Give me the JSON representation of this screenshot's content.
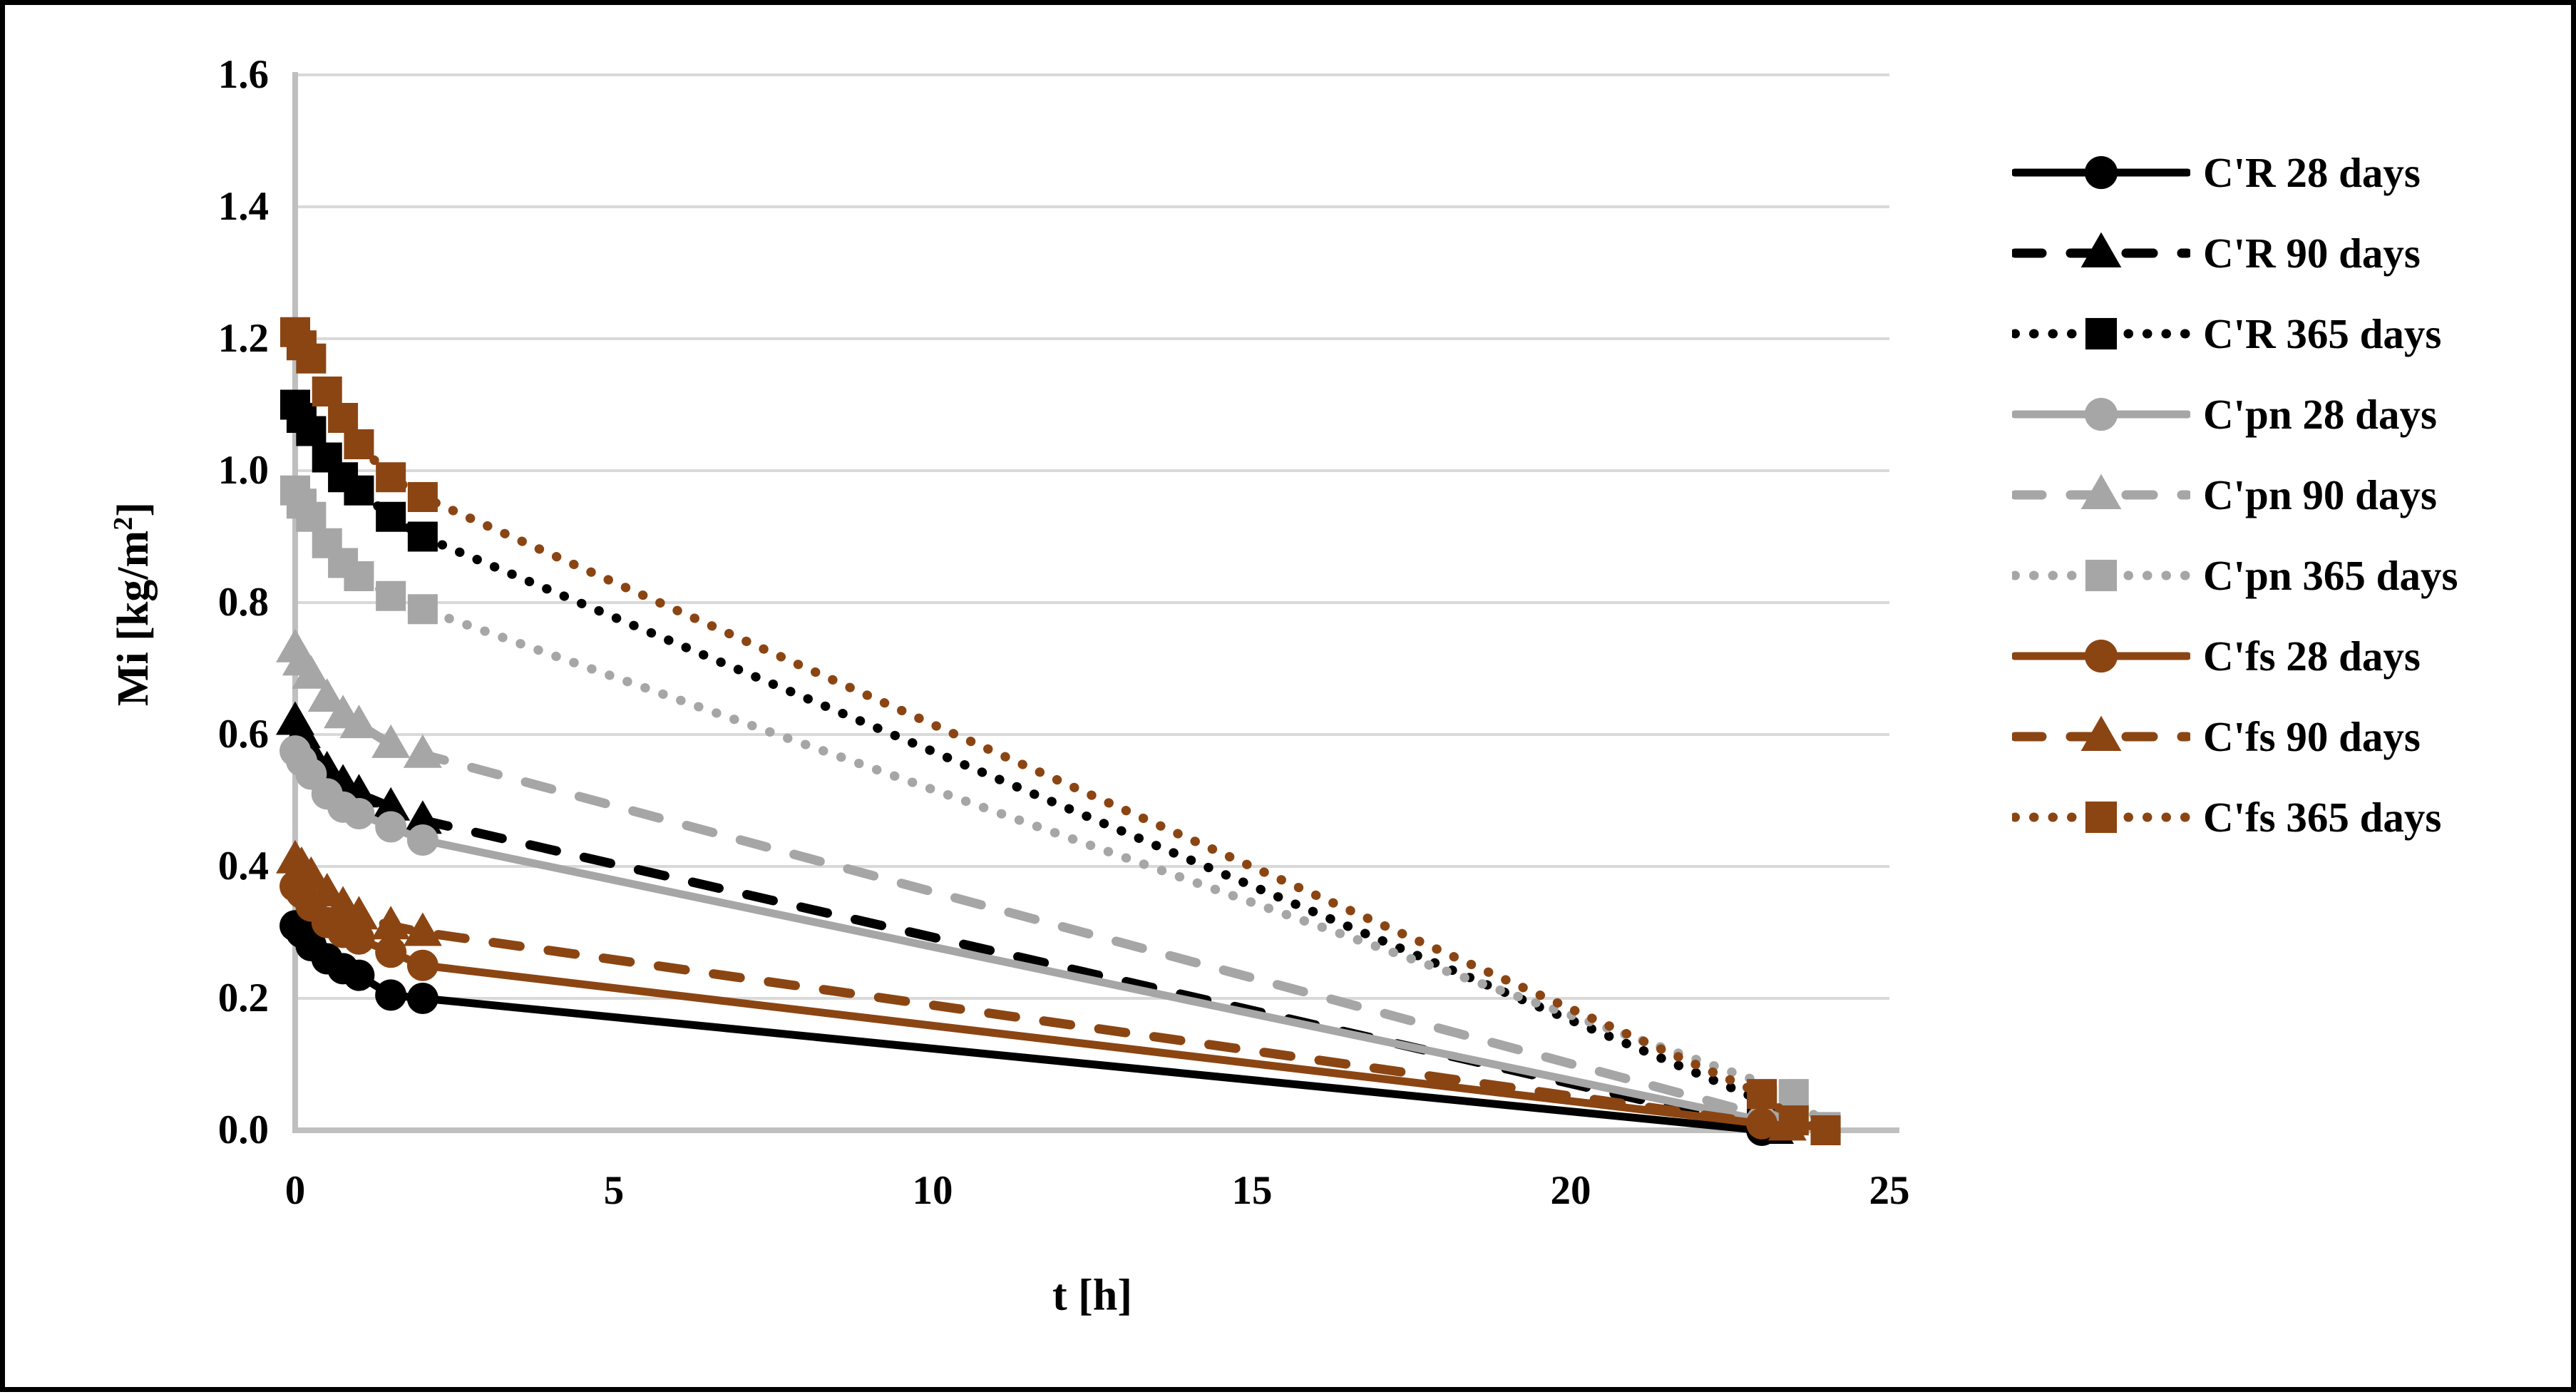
{
  "figure": {
    "background": "#ffffff",
    "border_color": "#000000"
  },
  "chart_data": {
    "type": "line",
    "title": "",
    "xlabel": "t [h]",
    "ylabel": "Mi [kg/m²]",
    "ylabel_parts": {
      "prefix": "Mi [kg/m",
      "sup": "2",
      "suffix": "]"
    },
    "xlim": [
      0,
      25
    ],
    "ylim": [
      0.0,
      1.6
    ],
    "x_ticks": [
      "0",
      "5",
      "10",
      "15",
      "20",
      "25"
    ],
    "y_ticks": [
      "0.0",
      "0.2",
      "0.4",
      "0.6",
      "0.8",
      "1.0",
      "1.2",
      "1.4",
      "1.6"
    ],
    "grid": "horizontal",
    "legend_position": "right",
    "colors": {
      "black": "#000000",
      "gray": "#A6A6A6",
      "brown": "#8B4513",
      "gridline": "#D9D9D9",
      "axis_line": "#BFBFBF"
    },
    "series": [
      {
        "name": "C'R 28 days",
        "color": "#000000",
        "marker": "circle",
        "line": "solid",
        "points": [
          [
            0,
            0.31
          ],
          [
            0.1,
            0.3
          ],
          [
            0.25,
            0.28
          ],
          [
            0.5,
            0.26
          ],
          [
            0.75,
            0.245
          ],
          [
            1,
            0.235
          ],
          [
            1.5,
            0.205
          ],
          [
            2,
            0.2
          ],
          [
            23,
            0.0
          ]
        ]
      },
      {
        "name": "C'R 90 days",
        "color": "#000000",
        "marker": "triangle",
        "line": "dashed",
        "points": [
          [
            0,
            0.62
          ],
          [
            0.1,
            0.6
          ],
          [
            0.25,
            0.57
          ],
          [
            0.5,
            0.545
          ],
          [
            0.75,
            0.525
          ],
          [
            1,
            0.51
          ],
          [
            1.5,
            0.49
          ],
          [
            2,
            0.47
          ],
          [
            23.2,
            0.0
          ]
        ]
      },
      {
        "name": "C'R 365 days",
        "color": "#000000",
        "marker": "square",
        "line": "dotted",
        "points": [
          [
            0,
            1.1
          ],
          [
            0.1,
            1.08
          ],
          [
            0.25,
            1.06
          ],
          [
            0.5,
            1.02
          ],
          [
            0.75,
            0.99
          ],
          [
            1,
            0.97
          ],
          [
            1.5,
            0.93
          ],
          [
            2,
            0.9
          ],
          [
            23,
            0.045
          ],
          [
            24,
            0.0
          ]
        ]
      },
      {
        "name": "C'pn 28 days",
        "color": "#A6A6A6",
        "marker": "circle",
        "line": "solid",
        "points": [
          [
            0,
            0.575
          ],
          [
            0.1,
            0.56
          ],
          [
            0.25,
            0.54
          ],
          [
            0.5,
            0.51
          ],
          [
            0.75,
            0.49
          ],
          [
            1,
            0.48
          ],
          [
            1.5,
            0.46
          ],
          [
            2,
            0.44
          ],
          [
            23,
            0.015
          ]
        ]
      },
      {
        "name": "C'pn 90 days",
        "color": "#A6A6A6",
        "marker": "triangle",
        "line": "dashed",
        "points": [
          [
            0,
            0.73
          ],
          [
            0.1,
            0.71
          ],
          [
            0.25,
            0.69
          ],
          [
            0.5,
            0.655
          ],
          [
            0.75,
            0.63
          ],
          [
            1,
            0.615
          ],
          [
            1.5,
            0.585
          ],
          [
            2,
            0.57
          ],
          [
            23.3,
            0.015
          ]
        ]
      },
      {
        "name": "C'pn 365 days",
        "color": "#A6A6A6",
        "marker": "square",
        "line": "dotted",
        "points": [
          [
            0,
            0.97
          ],
          [
            0.1,
            0.95
          ],
          [
            0.25,
            0.93
          ],
          [
            0.5,
            0.89
          ],
          [
            0.75,
            0.86
          ],
          [
            1,
            0.84
          ],
          [
            1.5,
            0.81
          ],
          [
            2,
            0.79
          ],
          [
            23.5,
            0.055
          ],
          [
            24,
            0.005
          ]
        ]
      },
      {
        "name": "C'fs 28 days",
        "color": "#8B4513",
        "marker": "circle",
        "line": "solid",
        "points": [
          [
            0,
            0.37
          ],
          [
            0.1,
            0.36
          ],
          [
            0.25,
            0.34
          ],
          [
            0.5,
            0.315
          ],
          [
            0.75,
            0.3
          ],
          [
            1,
            0.29
          ],
          [
            1.5,
            0.27
          ],
          [
            2,
            0.25
          ],
          [
            23,
            0.01
          ]
        ]
      },
      {
        "name": "C'fs 90 days",
        "color": "#8B4513",
        "marker": "triangle",
        "line": "dashed",
        "points": [
          [
            0,
            0.41
          ],
          [
            0.1,
            0.4
          ],
          [
            0.25,
            0.385
          ],
          [
            0.5,
            0.36
          ],
          [
            0.75,
            0.34
          ],
          [
            1,
            0.325
          ],
          [
            1.5,
            0.31
          ],
          [
            2,
            0.3
          ],
          [
            23.4,
            0.005
          ]
        ]
      },
      {
        "name": "C'fs 365 days",
        "color": "#8B4513",
        "marker": "square",
        "line": "dotted",
        "points": [
          [
            0,
            1.21
          ],
          [
            0.1,
            1.19
          ],
          [
            0.25,
            1.17
          ],
          [
            0.5,
            1.12
          ],
          [
            0.75,
            1.08
          ],
          [
            1,
            1.04
          ],
          [
            1.5,
            0.99
          ],
          [
            2,
            0.96
          ],
          [
            23,
            0.055
          ],
          [
            23.5,
            0.015
          ],
          [
            24,
            0.0
          ]
        ]
      }
    ]
  }
}
